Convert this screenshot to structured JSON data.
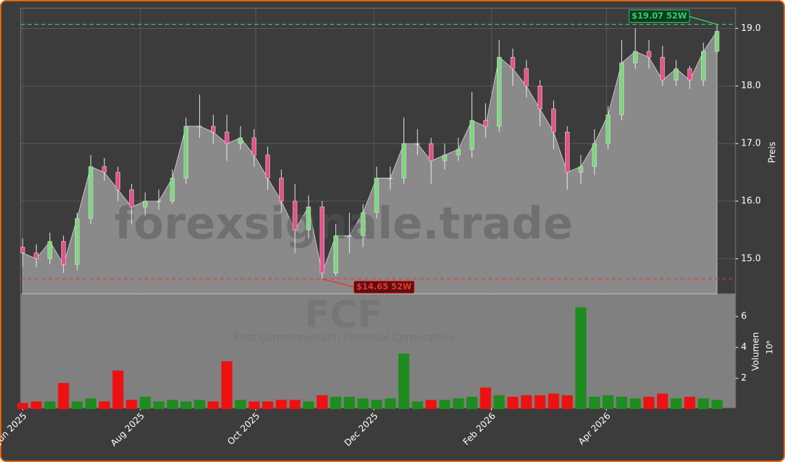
{
  "chart_data": {
    "type": "candlestick",
    "watermark": "forexsignale.trade",
    "ticker": "FCF",
    "company": "First Commonwealth Financial Corporation",
    "ylabel": "Preis",
    "y2label": "Volumen",
    "y2_exponent": "10⁶",
    "xlim": [
      -0.15,
      52.36
    ],
    "xticks": [
      {
        "value": 0,
        "label": "Jun 2025"
      },
      {
        "value": 8.64,
        "label": "Aug 2025"
      },
      {
        "value": 17.12,
        "label": "Oct 2025"
      },
      {
        "value": 25.8,
        "label": "Dec 2025"
      },
      {
        "value": 34.44,
        "label": "Feb 2026"
      },
      {
        "value": 42.88,
        "label": "Apr 2026"
      }
    ],
    "ylim": [
      14.39,
      19.35
    ],
    "yticks": [
      {
        "value": 15,
        "label": "15.0"
      },
      {
        "value": 16,
        "label": "16.0"
      },
      {
        "value": 17,
        "label": "17.0"
      },
      {
        "value": 18,
        "label": "18.0"
      },
      {
        "value": 19,
        "label": "19.0"
      }
    ],
    "y2lim": [
      0,
      7.47
    ],
    "y2ticks": [
      2,
      4,
      6
    ],
    "grid": true,
    "up_color": "#7ed67e",
    "down_color": "#e8508a",
    "area_color": "#8a8a8a",
    "volume_up_color": "#1e8c1e",
    "volume_down_color": "#ee1111",
    "open": [
      15.2,
      15.1,
      15.0,
      15.3,
      14.9,
      15.7,
      16.6,
      16.5,
      16.2,
      15.9,
      16.0,
      16.0,
      16.4,
      17.3,
      17.3,
      17.2,
      17.0,
      17.1,
      16.8,
      16.4,
      16.0,
      15.5,
      15.9,
      14.75,
      15.4,
      15.4,
      15.8,
      16.4,
      16.4,
      17.0,
      17.0,
      16.7,
      16.8,
      16.9,
      17.4,
      17.3,
      18.5,
      18.3,
      18.0,
      17.6,
      17.2,
      16.5,
      16.6,
      17.0,
      17.5,
      18.4,
      18.6,
      18.5,
      18.1,
      18.3,
      18.1,
      18.6
    ],
    "high": [
      15.35,
      15.25,
      15.45,
      15.4,
      15.8,
      16.8,
      16.75,
      16.6,
      16.3,
      16.15,
      16.2,
      16.55,
      17.45,
      17.85,
      17.5,
      17.5,
      17.3,
      17.25,
      16.95,
      16.55,
      16.3,
      16.1,
      16.0,
      15.6,
      15.8,
      15.95,
      16.6,
      16.6,
      17.45,
      17.25,
      17.1,
      17.0,
      17.1,
      17.9,
      17.7,
      18.8,
      18.65,
      18.45,
      18.1,
      17.75,
      17.3,
      16.8,
      17.25,
      17.65,
      18.8,
      19.0,
      18.8,
      18.7,
      18.45,
      18.35,
      18.75,
      19.07
    ],
    "low": [
      14.85,
      14.85,
      14.9,
      14.75,
      14.8,
      15.6,
      16.35,
      16.0,
      15.6,
      15.75,
      15.85,
      15.95,
      16.3,
      17.1,
      17.0,
      16.7,
      16.9,
      16.6,
      16.2,
      15.8,
      15.1,
      15.35,
      14.65,
      14.7,
      15.1,
      15.2,
      15.7,
      16.2,
      16.3,
      16.8,
      16.3,
      16.55,
      16.7,
      16.75,
      17.1,
      17.2,
      18.0,
      17.8,
      17.3,
      16.9,
      16.2,
      16.3,
      16.45,
      16.9,
      17.4,
      18.3,
      18.3,
      18.0,
      18.0,
      17.95,
      18.0,
      18.55
    ],
    "close": [
      15.1,
      15.0,
      15.3,
      14.9,
      15.7,
      16.6,
      16.5,
      16.2,
      15.9,
      16.0,
      16.0,
      16.4,
      17.3,
      17.3,
      17.2,
      17.0,
      17.1,
      16.8,
      16.4,
      16.0,
      15.5,
      15.9,
      14.75,
      15.4,
      15.4,
      15.8,
      16.4,
      16.4,
      17.0,
      17.0,
      16.7,
      16.8,
      16.9,
      17.4,
      17.3,
      18.5,
      18.3,
      18.0,
      17.6,
      17.2,
      16.5,
      16.6,
      17.0,
      17.5,
      18.4,
      18.6,
      18.5,
      18.1,
      18.3,
      18.1,
      18.6,
      18.95
    ],
    "volume": [
      0.4,
      0.5,
      0.5,
      1.7,
      0.5,
      0.7,
      0.5,
      2.5,
      0.6,
      0.8,
      0.5,
      0.6,
      0.5,
      0.6,
      0.5,
      3.1,
      0.6,
      0.5,
      0.5,
      0.6,
      0.6,
      0.5,
      0.9,
      0.8,
      0.8,
      0.7,
      0.6,
      0.7,
      3.6,
      0.5,
      0.6,
      0.6,
      0.7,
      0.8,
      1.4,
      0.9,
      0.8,
      0.9,
      0.9,
      1.0,
      0.9,
      6.6,
      0.8,
      0.9,
      0.8,
      0.7,
      0.8,
      1.0,
      0.7,
      0.8,
      0.7,
      0.6
    ],
    "annotations": [
      {
        "value": 19.07,
        "label": "$19.07 52W",
        "color": "#2ecc71"
      },
      {
        "value": 14.65,
        "label": "$14.65 52W",
        "color": "#e33"
      }
    ]
  }
}
